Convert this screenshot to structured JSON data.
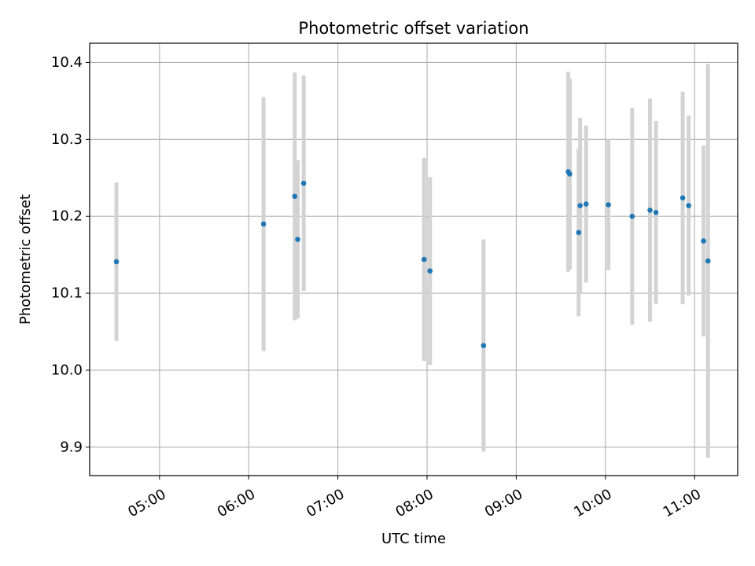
{
  "chart_data": {
    "type": "scatter",
    "title": "Photometric offset variation",
    "xlabel": "UTC time",
    "ylabel": "Photometric offset",
    "x_axis_type": "time",
    "xlim": [
      "04:13",
      "11:29"
    ],
    "ylim": [
      9.863,
      10.425
    ],
    "x_ticks": [
      "05:00",
      "06:00",
      "07:00",
      "08:00",
      "09:00",
      "10:00",
      "11:00"
    ],
    "y_ticks": [
      9.9,
      10.0,
      10.1,
      10.2,
      10.3,
      10.4
    ],
    "grid": true,
    "marker_color": "#1f77b4",
    "errorbar_color": "#d3d3d3",
    "points": [
      {
        "x": "04:31",
        "y": 10.141,
        "yerr": 0.103
      },
      {
        "x": "06:10",
        "y": 10.19,
        "yerr": 0.165
      },
      {
        "x": "06:31",
        "y": 10.226,
        "yerr": 0.161
      },
      {
        "x": "06:33",
        "y": 10.17,
        "yerr": 0.103
      },
      {
        "x": "06:37",
        "y": 10.243,
        "yerr": 0.14
      },
      {
        "x": "07:58",
        "y": 10.144,
        "yerr": 0.132
      },
      {
        "x": "08:02",
        "y": 10.129,
        "yerr": 0.122
      },
      {
        "x": "08:38",
        "y": 10.032,
        "yerr": 0.138
      },
      {
        "x": "09:35",
        "y": 10.258,
        "yerr": 0.13
      },
      {
        "x": "09:36",
        "y": 10.255,
        "yerr": 0.124
      },
      {
        "x": "09:42",
        "y": 10.179,
        "yerr": 0.109
      },
      {
        "x": "09:43",
        "y": 10.214,
        "yerr": 0.114
      },
      {
        "x": "09:47",
        "y": 10.216,
        "yerr": 0.102
      },
      {
        "x": "10:02",
        "y": 10.215,
        "yerr": 0.085
      },
      {
        "x": "10:18",
        "y": 10.2,
        "yerr": 0.141
      },
      {
        "x": "10:30",
        "y": 10.208,
        "yerr": 0.145
      },
      {
        "x": "10:34",
        "y": 10.205,
        "yerr": 0.119
      },
      {
        "x": "10:52",
        "y": 10.224,
        "yerr": 0.138
      },
      {
        "x": "10:56",
        "y": 10.214,
        "yerr": 0.117
      },
      {
        "x": "11:06",
        "y": 10.168,
        "yerr": 0.124
      },
      {
        "x": "11:09",
        "y": 10.142,
        "yerr": 0.256
      }
    ]
  }
}
